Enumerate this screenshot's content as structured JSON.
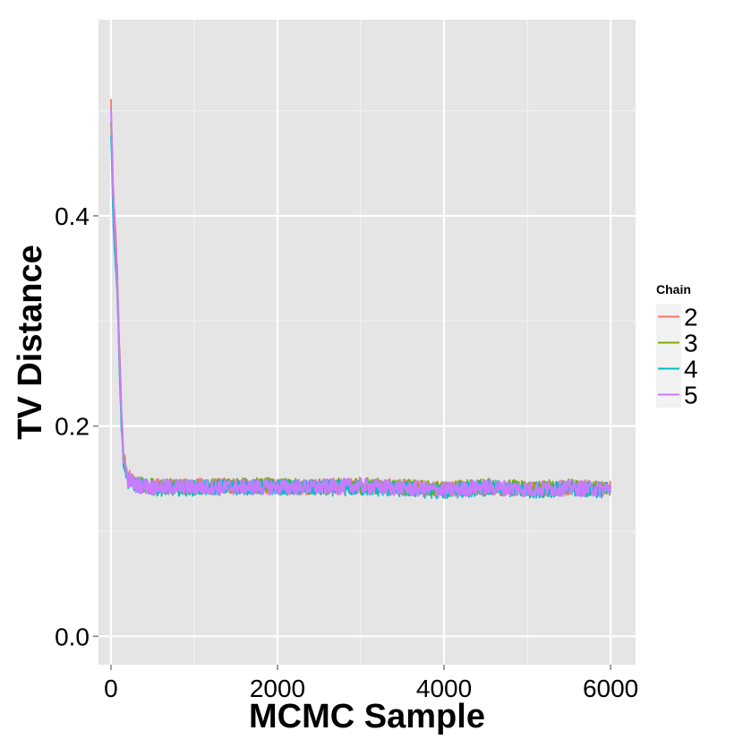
{
  "chart_data": {
    "type": "line",
    "title": "",
    "xlabel": "MCMC Sample",
    "ylabel": "TV Distance",
    "xlim": [
      -150,
      6300
    ],
    "ylim": [
      -0.027,
      0.5866
    ],
    "x_ticks": [
      0,
      2000,
      4000,
      6000
    ],
    "x_tick_labels": [
      "0",
      "2000",
      "4000",
      "6000"
    ],
    "y_ticks": [
      0.0,
      0.2,
      0.4
    ],
    "y_tick_labels": [
      "0.0",
      "0.2",
      "0.4"
    ],
    "grid": true,
    "legend": {
      "title": "Chain",
      "position": "right"
    },
    "series": [
      {
        "name": "2",
        "color": "#F8766D",
        "x": [
          0,
          25,
          50,
          75,
          100,
          125,
          150,
          200,
          300,
          500,
          1000,
          1500,
          2000,
          2500,
          3000,
          3500,
          4000,
          4500,
          5000,
          5500,
          6000
        ],
        "y": [
          0.51,
          0.43,
          0.39,
          0.35,
          0.28,
          0.22,
          0.175,
          0.152,
          0.146,
          0.142,
          0.143,
          0.143,
          0.142,
          0.142,
          0.143,
          0.142,
          0.14,
          0.142,
          0.14,
          0.141,
          0.141
        ]
      },
      {
        "name": "3",
        "color": "#7CAE00",
        "x": [
          0,
          25,
          50,
          75,
          100,
          125,
          150,
          200,
          300,
          500,
          1000,
          1500,
          2000,
          2500,
          3000,
          3500,
          4000,
          4500,
          5000,
          5500,
          6000
        ],
        "y": [
          0.49,
          0.41,
          0.37,
          0.34,
          0.27,
          0.21,
          0.17,
          0.15,
          0.145,
          0.143,
          0.142,
          0.144,
          0.143,
          0.142,
          0.144,
          0.142,
          0.14,
          0.143,
          0.141,
          0.142,
          0.14
        ]
      },
      {
        "name": "4",
        "color": "#00BFC4",
        "x": [
          0,
          25,
          50,
          75,
          100,
          125,
          150,
          200,
          300,
          500,
          1000,
          1500,
          2000,
          2500,
          3000,
          3500,
          4000,
          4500,
          5000,
          5500,
          6000
        ],
        "y": [
          0.48,
          0.4,
          0.36,
          0.33,
          0.26,
          0.2,
          0.165,
          0.148,
          0.144,
          0.141,
          0.141,
          0.142,
          0.142,
          0.141,
          0.141,
          0.14,
          0.138,
          0.141,
          0.139,
          0.14,
          0.139
        ]
      },
      {
        "name": "5",
        "color": "#C77CFF",
        "x": [
          0,
          25,
          50,
          75,
          100,
          125,
          150,
          200,
          300,
          500,
          1000,
          1500,
          2000,
          2500,
          3000,
          3500,
          4000,
          4500,
          5000,
          5500,
          6000
        ],
        "y": [
          0.5,
          0.42,
          0.38,
          0.34,
          0.27,
          0.21,
          0.17,
          0.15,
          0.144,
          0.142,
          0.142,
          0.142,
          0.142,
          0.142,
          0.143,
          0.141,
          0.139,
          0.142,
          0.14,
          0.141,
          0.14
        ]
      }
    ],
    "panel_background": "#E5E5E5",
    "grid_color": "#FFFFFF"
  }
}
